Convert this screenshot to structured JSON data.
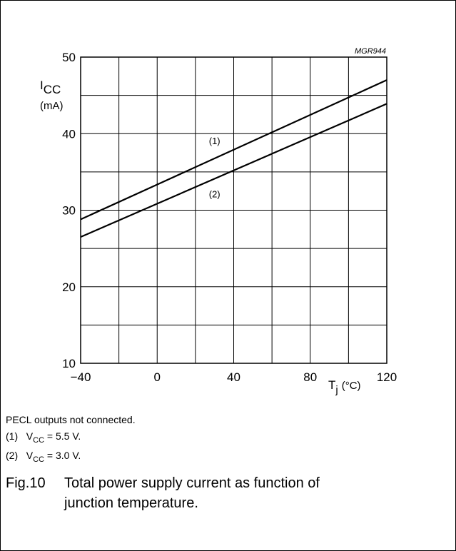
{
  "chart_data": {
    "type": "line",
    "reference": "MGR944",
    "x": [
      -40,
      120
    ],
    "xlim": [
      -40,
      120
    ],
    "ylim": [
      10,
      50
    ],
    "x_ticks": [
      -40,
      0,
      40,
      80,
      120
    ],
    "y_ticks": [
      10,
      20,
      30,
      40,
      50
    ],
    "x_tick_labels": [
      "−40",
      "0",
      "40",
      "80",
      "120"
    ],
    "y_tick_labels": [
      "10",
      "20",
      "30",
      "40",
      "50"
    ],
    "x_grid_step": 20,
    "y_grid_step": 5,
    "ylabel": {
      "symbol": "I",
      "subscript": "CC",
      "unit": "(mA)"
    },
    "xlabel": {
      "symbol": "T",
      "subscript": "j",
      "unit": "(°C)"
    },
    "grid": true,
    "series": [
      {
        "name": "(1)",
        "values": [
          28.8,
          47.0
        ]
      },
      {
        "name": "(2)",
        "values": [
          26.5,
          43.9
        ]
      }
    ]
  },
  "notes": {
    "line0": "PECL outputs not connected.",
    "n1_label": "(1)",
    "n1_sym": "V",
    "n1_sub": "CC",
    "n1_val": "= 5.5 V.",
    "n2_label": "(2)",
    "n2_sym": "V",
    "n2_sub": "CC",
    "n2_val": "= 3.0 V."
  },
  "caption": {
    "fig": "Fig.10",
    "line1": "Total power supply current as function of",
    "line2": "junction temperature."
  }
}
